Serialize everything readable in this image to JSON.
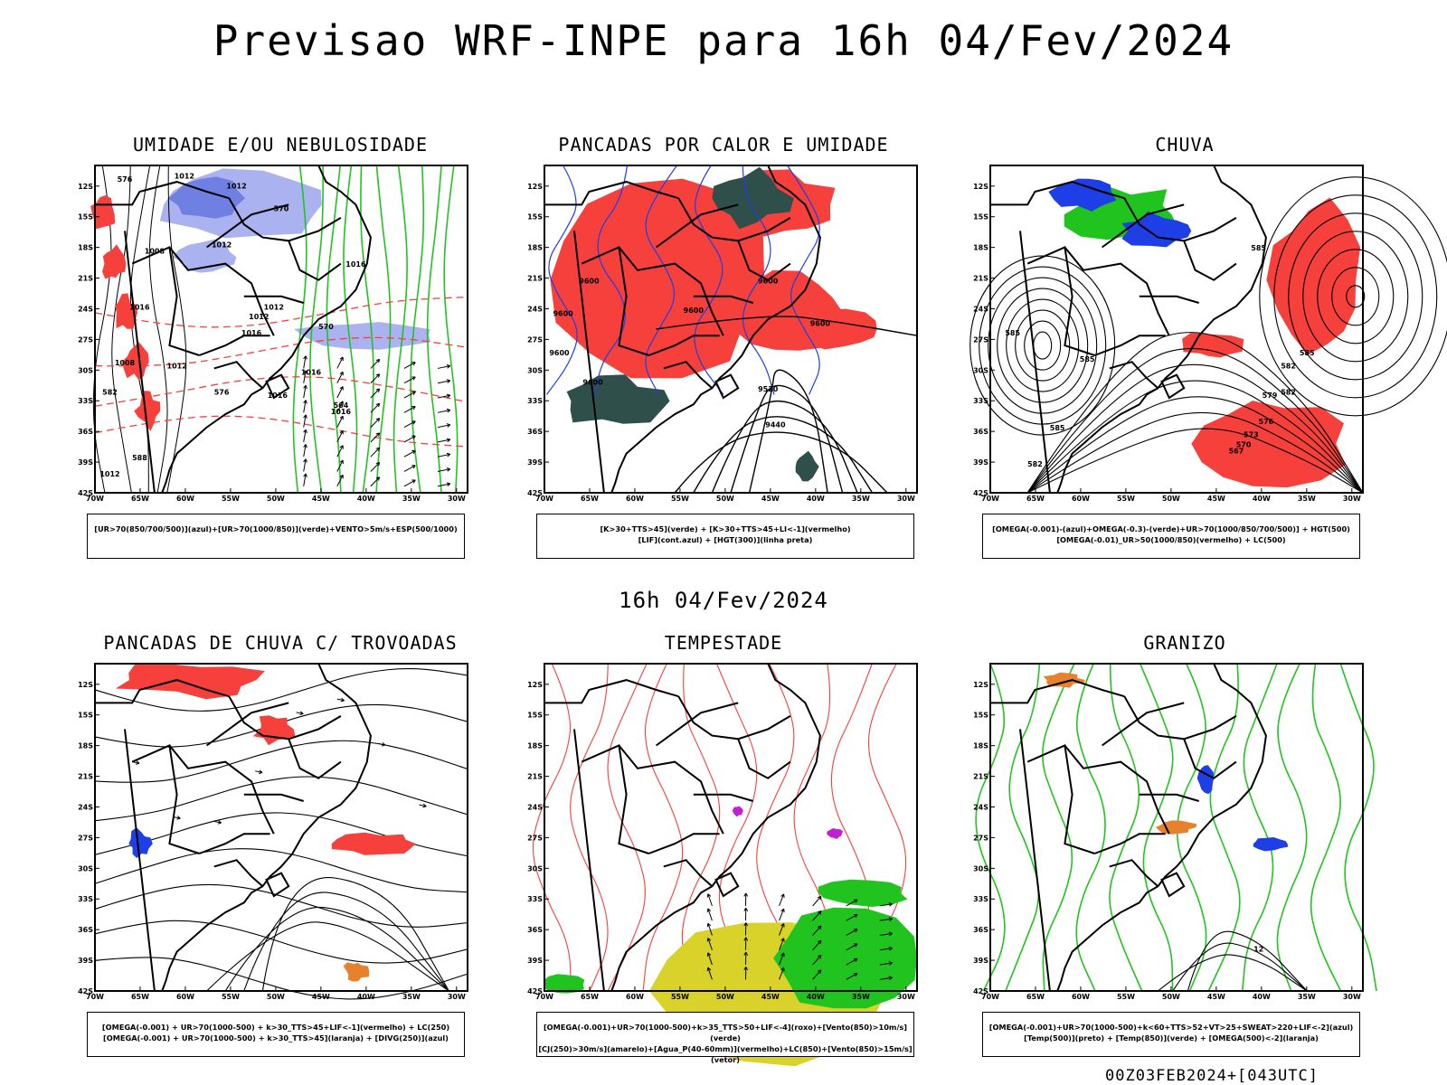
{
  "header": {
    "title": "Previsao WRF-INPE  para 16h 04/Fev/2024",
    "middle_label": "16h 04/Fev/2024",
    "footer": "00Z03FEB2024+[043UTC]"
  },
  "axes": {
    "lat_labels": [
      "12S",
      "15S",
      "18S",
      "21S",
      "24S",
      "27S",
      "30S",
      "33S",
      "36S",
      "39S",
      "42S"
    ],
    "lon_labels": [
      "70W",
      "65W",
      "60W",
      "55W",
      "50W",
      "45W",
      "40W",
      "35W",
      "30W"
    ]
  },
  "colors": {
    "red": "#f5403c",
    "green": "#21c41f",
    "blue": "#1f3fe6",
    "lavender": "#aab2ef",
    "darkgreen": "#2f4f4a",
    "yellow": "#d9d22a",
    "orange": "#e7812c",
    "magenta": "#c020d0"
  },
  "panels": [
    {
      "title": "UMIDADE E/OU NEBULOSIDADE",
      "legend": [
        "[UR>70(850/700/500)](azul)+[UR>70(1000/850)](verde)+VENTO>5m/s+ESP(500/1000)"
      ],
      "labels": [
        "1012",
        "1012",
        "1008",
        "1012",
        "1016",
        "1012",
        "1016",
        "1016",
        "1008",
        "1016",
        "1012",
        "1012",
        "1016",
        "1016",
        "1012",
        "576",
        "570",
        "564",
        "570",
        "576",
        "582",
        "588"
      ]
    },
    {
      "title": "PANCADAS POR CALOR E UMIDADE",
      "legend": [
        "[K>30+TTS>45](verde) + [K>30+TTS>45+LI<-1](vermelho)",
        "[LIF](cont.azul) + [HGT(300)](linha preta)"
      ],
      "labels": [
        "9600",
        "9600",
        "9600",
        "9600",
        "9600",
        "9600",
        "9600",
        "9520",
        "9440"
      ]
    },
    {
      "title": "CHUVA",
      "legend": [
        "[OMEGA(-0.001)-(azul)+OMEGA(-0.3)-(verde)+UR>70(1000/850/700/500)] + HGT(500)",
        "[OMEGA(-0.01)_UR>50(1000/850)(vermelho) + LC(500)"
      ],
      "labels": [
        "585",
        "585",
        "585",
        "582",
        "585",
        "585",
        "582",
        "582",
        "579",
        "576",
        "573",
        "570",
        "567"
      ]
    },
    {
      "title": "PANCADAS DE CHUVA C/ TROVOADAS",
      "legend": [
        "[OMEGA(-0.001) + UR>70(1000-500) + k>30_TTS>45+LIF<-1](vermelho) + LC(250)",
        "[OMEGA(-0.001) + UR>70(1000-500) + k>30_TTS>45](laranja) + [DIVG(250)](azul)"
      ],
      "labels": []
    },
    {
      "title": "TEMPESTADE",
      "legend": [
        "[OMEGA(-0.001)+UR>70(1000-500)+k>35_TTS>50+LIF<-4](roxo)+[Vento(850)>10m/s](verde)",
        "[CJ(250)>30m/s](amarelo)+[Agua_P(40-60mm)](vermelho)+LC(850)+[Vento(850)>15m/s](vetor)"
      ],
      "labels": []
    },
    {
      "title": "GRANIZO",
      "legend": [
        "[OMEGA(-0.001)+UR>70(1000-500)+k<60+TTS>52+VT>25+SWEAT>220+LIF<-2](azul)",
        "[Temp(500)](preto) + [Temp(850)](verde) + [OMEGA(500)<-2](laranja)"
      ],
      "labels": [
        "12"
      ]
    }
  ]
}
